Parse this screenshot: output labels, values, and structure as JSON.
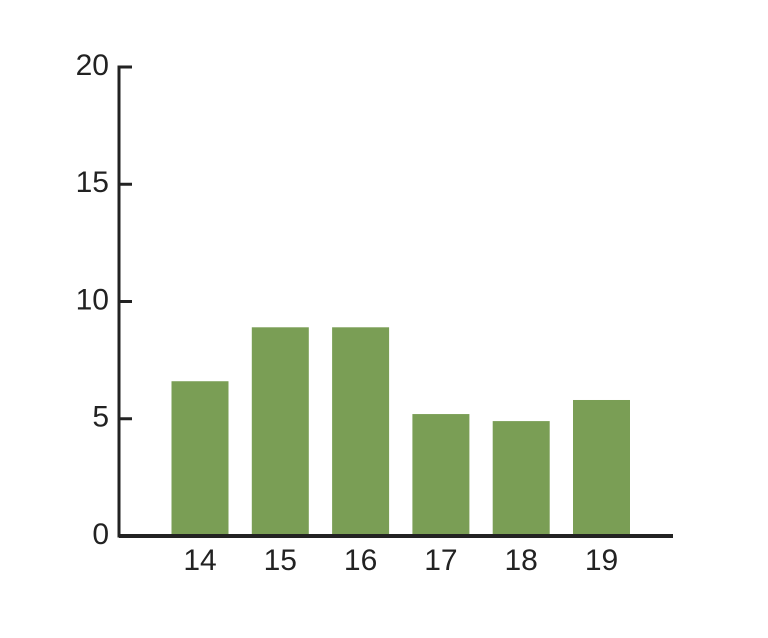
{
  "chart_data": {
    "type": "bar",
    "categories": [
      "14",
      "15",
      "16",
      "17",
      "18",
      "19"
    ],
    "values": [
      6.6,
      8.9,
      8.9,
      5.2,
      4.9,
      5.8
    ],
    "color": "#7a9e55",
    "ylim": [
      0,
      20
    ],
    "yticks": [
      0,
      5,
      10,
      15,
      20
    ]
  }
}
